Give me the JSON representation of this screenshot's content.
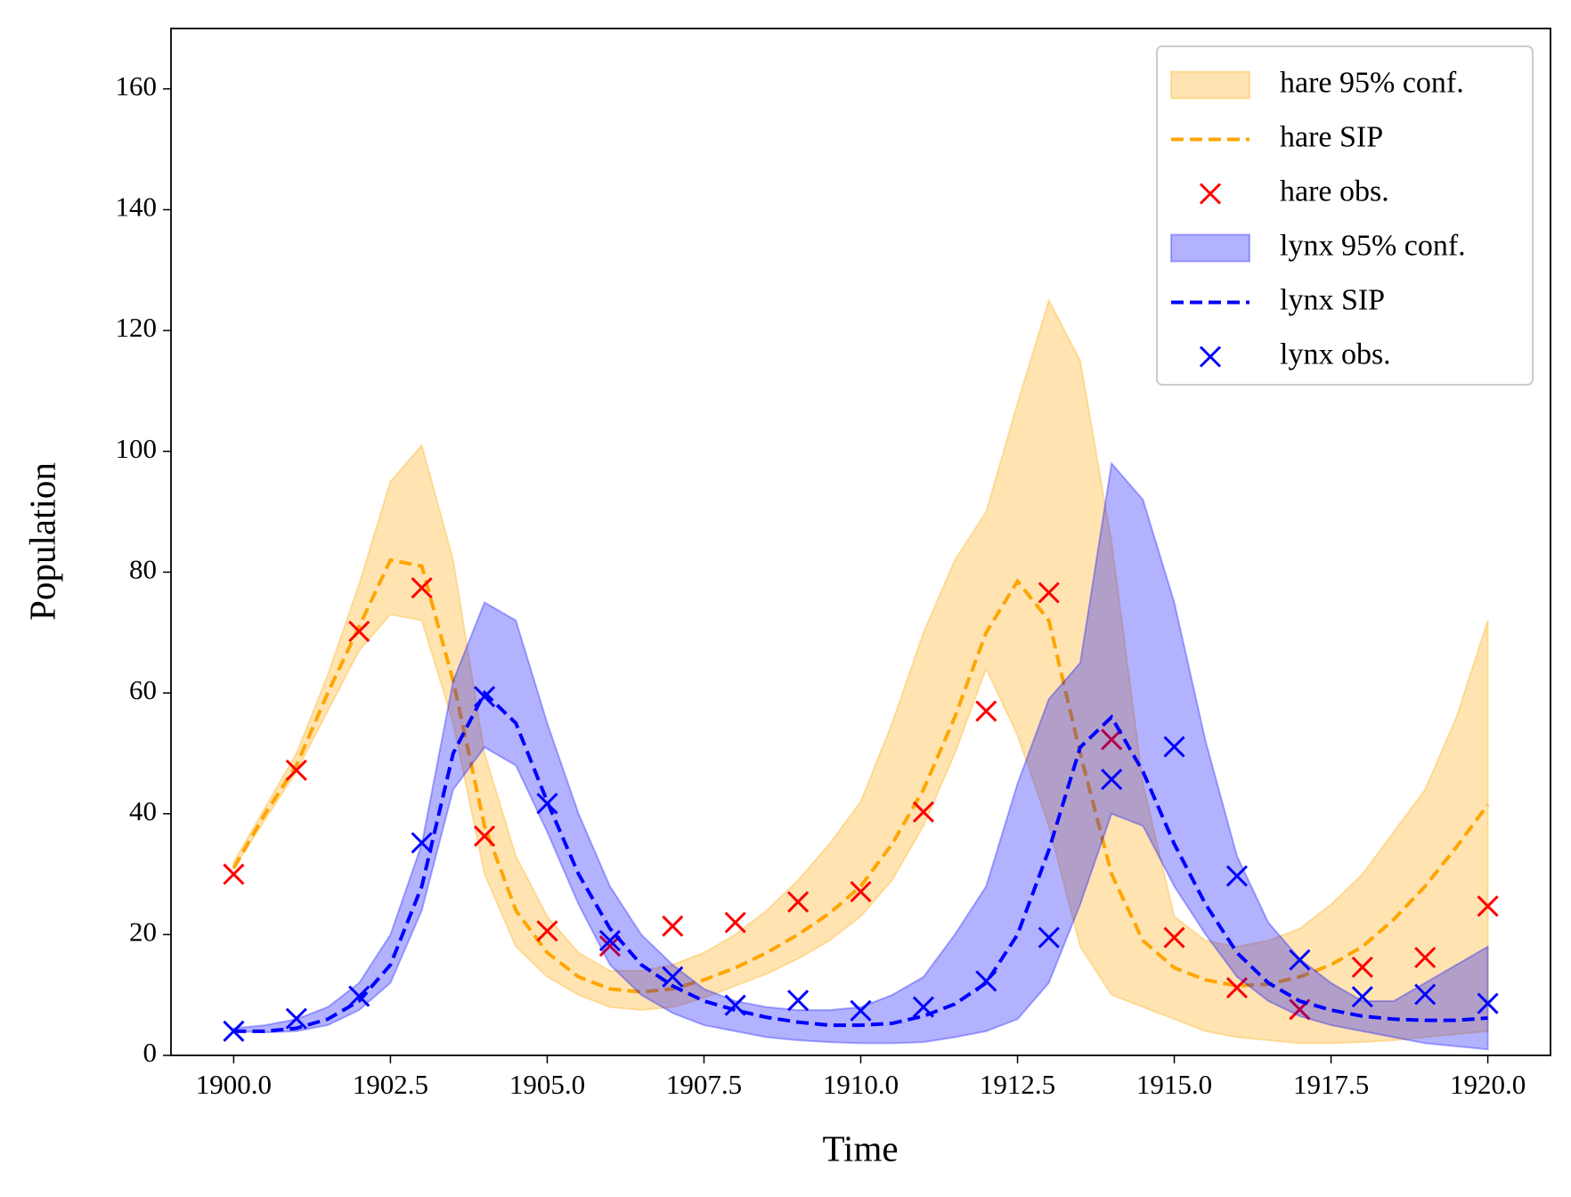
{
  "chart_data": {
    "type": "line",
    "x_label": "Time",
    "y_label": "Population",
    "xlim": [
      1899,
      1921
    ],
    "ylim": [
      0,
      170
    ],
    "xticks": [
      {
        "value": 1900,
        "label": "1900.0"
      },
      {
        "value": 1902.5,
        "label": "1902.5"
      },
      {
        "value": 1905,
        "label": "1905.0"
      },
      {
        "value": 1907.5,
        "label": "1907.5"
      },
      {
        "value": 1910,
        "label": "1910.0"
      },
      {
        "value": 1912.5,
        "label": "1912.5"
      },
      {
        "value": 1915,
        "label": "1915.0"
      },
      {
        "value": 1917.5,
        "label": "1917.5"
      },
      {
        "value": 1920,
        "label": "1920.0"
      }
    ],
    "yticks": [
      0,
      20,
      40,
      60,
      80,
      100,
      120,
      140,
      160
    ],
    "legend": "upper right",
    "x": [
      1900,
      1900.5,
      1901,
      1901.5,
      1902,
      1902.5,
      1903,
      1903.5,
      1904,
      1904.5,
      1905,
      1905.5,
      1906,
      1906.5,
      1907,
      1907.5,
      1908,
      1908.5,
      1909,
      1909.5,
      1910,
      1910.5,
      1911,
      1911.5,
      1912,
      1912.5,
      1913,
      1913.5,
      1914,
      1914.5,
      1915,
      1915.5,
      1916,
      1916.5,
      1917,
      1917.5,
      1918,
      1918.5,
      1919,
      1919.5,
      1920
    ],
    "series": [
      {
        "name": "hare 95% conf.",
        "kind": "band",
        "color": "#ffa500",
        "lower": [
          31,
          39,
          47,
          57,
          67,
          73,
          72,
          55,
          30,
          18,
          13,
          10,
          8,
          7.5,
          8,
          9.5,
          11.5,
          13.5,
          16,
          19,
          23,
          29,
          38,
          50,
          64,
          53,
          38,
          18,
          10,
          8,
          6,
          4,
          3,
          2.5,
          2,
          2,
          2.2,
          2.5,
          3,
          3.5,
          4
        ],
        "upper": [
          32,
          41,
          50,
          63,
          78,
          95,
          101,
          82,
          50,
          33,
          23,
          17,
          14,
          14,
          15,
          17,
          20,
          24,
          29,
          35,
          42,
          55,
          70,
          82,
          90,
          108,
          125,
          115,
          85,
          45,
          23,
          19,
          18,
          19,
          21,
          25,
          30,
          37,
          44,
          56,
          72
        ]
      },
      {
        "name": "hare SIP",
        "kind": "dashed",
        "color": "#ffa500",
        "values": [
          31,
          40,
          48,
          60,
          71,
          82,
          81,
          62,
          38,
          24,
          17,
          13,
          11,
          10.5,
          11,
          12.5,
          14.5,
          17,
          20,
          23.5,
          28,
          35,
          44,
          56,
          70,
          78.5,
          72,
          50,
          30,
          19,
          14.5,
          12.5,
          11.5,
          11.8,
          13,
          15,
          18,
          22.5,
          28,
          34.5,
          41.5
        ]
      },
      {
        "name": "hare obs.",
        "kind": "marker",
        "color": "#ff0000",
        "x": [
          1900,
          1901,
          1902,
          1903,
          1904,
          1905,
          1906,
          1907,
          1908,
          1909,
          1910,
          1911,
          1912,
          1913,
          1914,
          1915,
          1916,
          1917,
          1918,
          1919,
          1920
        ],
        "values": [
          30,
          47.2,
          70.2,
          77.4,
          36.3,
          20.6,
          18.1,
          21.4,
          22,
          25.4,
          27.1,
          40.3,
          57,
          76.6,
          52.3,
          19.5,
          11.2,
          7.6,
          14.6,
          16.2,
          24.7
        ]
      },
      {
        "name": "lynx 95% conf.",
        "kind": "band",
        "color": "#0000ff",
        "lower": [
          4,
          3.8,
          4,
          5,
          7.5,
          12,
          24,
          44,
          51,
          48,
          37,
          25,
          15,
          10,
          7,
          5,
          4,
          3,
          2.5,
          2.2,
          2,
          2,
          2.2,
          3,
          4,
          6,
          12,
          25,
          40,
          38,
          28,
          20,
          13,
          9,
          6.5,
          5,
          4,
          3,
          2,
          1.5,
          1
        ],
        "upper": [
          4.5,
          5,
          6,
          8,
          12,
          20,
          35,
          62,
          75,
          72,
          55,
          40,
          28,
          20,
          15,
          11,
          9,
          8,
          7.5,
          7.5,
          8,
          10,
          13,
          20,
          28,
          45,
          59,
          65,
          98,
          92,
          75,
          52,
          33,
          22,
          16,
          12,
          9,
          9,
          12,
          15,
          18
        ]
      },
      {
        "name": "lynx SIP",
        "kind": "dashed",
        "color": "#0000ff",
        "values": [
          4,
          4,
          4.5,
          6,
          9,
          15,
          28,
          50,
          60,
          55,
          42,
          30,
          21,
          15,
          11.5,
          9,
          7.5,
          6.3,
          5.5,
          5,
          5,
          5.3,
          6.5,
          8.5,
          12,
          20,
          34,
          51,
          56,
          47,
          35,
          25,
          17,
          12,
          9,
          7.5,
          6.5,
          6,
          5.8,
          5.8,
          6.2
        ]
      },
      {
        "name": "lynx obs.",
        "kind": "marker",
        "color": "#0000ff",
        "x": [
          1900,
          1901,
          1902,
          1903,
          1904,
          1905,
          1906,
          1907,
          1908,
          1909,
          1910,
          1911,
          1912,
          1913,
          1914,
          1915,
          1916,
          1917,
          1918,
          1919,
          1920
        ],
        "values": [
          4,
          6.1,
          9.8,
          35.2,
          59.4,
          41.7,
          19,
          13,
          8.3,
          9.1,
          7.4,
          8,
          12.3,
          19.5,
          45.7,
          51.1,
          29.7,
          15.8,
          9.7,
          10.1,
          8.6
        ]
      }
    ]
  }
}
